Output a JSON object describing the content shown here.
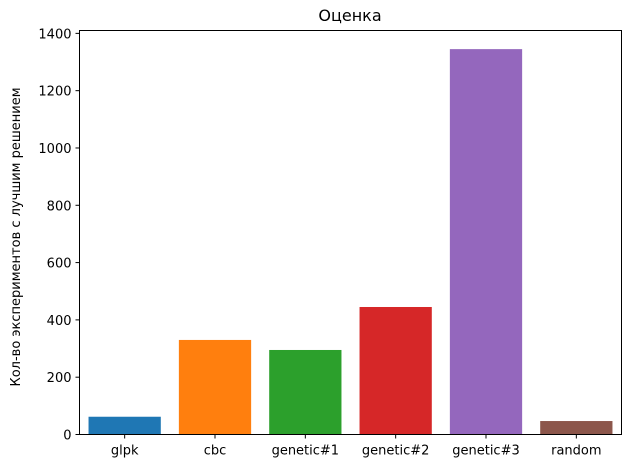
{
  "chart_data": {
    "type": "bar",
    "title": "Оценка",
    "xlabel": "",
    "ylabel": "Кол-во экспериментов с лучшим решением",
    "categories": [
      "glpk",
      "cbc",
      "genetic#1",
      "genetic#2",
      "genetic#3",
      "random"
    ],
    "values": [
      62,
      330,
      295,
      445,
      1345,
      47
    ],
    "colors": [
      "#1f77b4",
      "#ff7f0e",
      "#2ca02c",
      "#d62728",
      "#9467bd",
      "#8c564b"
    ],
    "ylim": [
      0,
      1410
    ],
    "yticks": [
      0,
      200,
      400,
      600,
      800,
      1000,
      1200,
      1400
    ],
    "grid": false
  }
}
